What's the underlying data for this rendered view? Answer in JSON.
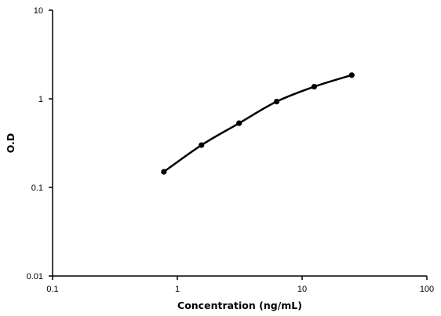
{
  "chart_data": {
    "type": "line",
    "title": "",
    "xlabel": "Concentration (ng/mL)",
    "ylabel": "O.D",
    "x_scale": "log",
    "y_scale": "log",
    "xlim": [
      0.1,
      100
    ],
    "ylim": [
      0.01,
      10
    ],
    "x_ticks": [
      0.1,
      1,
      10,
      100
    ],
    "x_tick_labels": [
      "0.1",
      "1",
      "10",
      "100"
    ],
    "y_ticks": [
      0.01,
      0.1,
      1,
      10
    ],
    "y_tick_labels": [
      "0.01",
      "0.1",
      "1",
      "10"
    ],
    "grid": false,
    "legend": "none",
    "series": [
      {
        "x": [
          0.78,
          1.56,
          3.125,
          6.25,
          12.5,
          25
        ],
        "y": [
          0.15,
          0.3,
          0.53,
          0.93,
          1.37,
          1.85
        ],
        "color": "#000000",
        "marker": "circle",
        "line": "smooth"
      }
    ]
  }
}
